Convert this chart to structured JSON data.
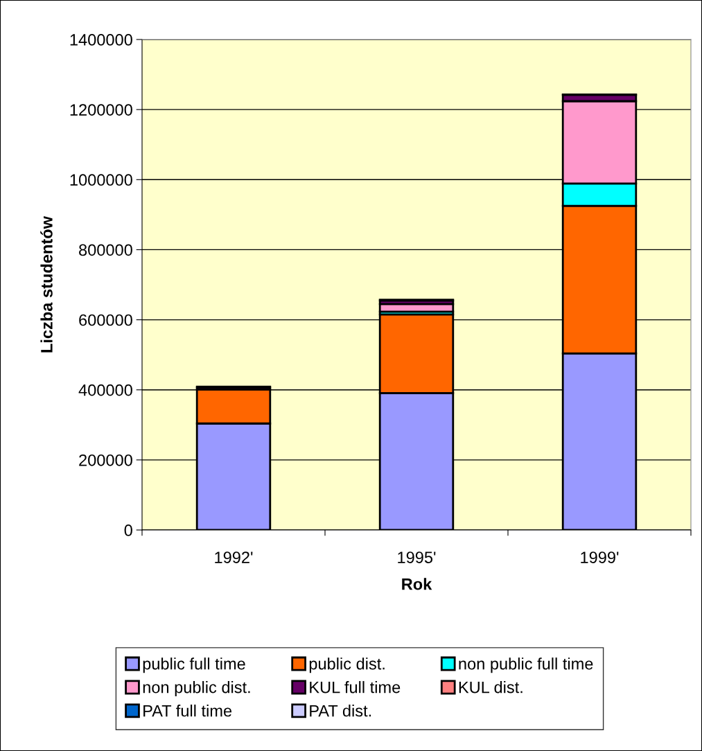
{
  "chart_data": {
    "type": "bar",
    "stacked": true,
    "xlabel": "Rok",
    "ylabel": "Liczba studentów",
    "categories": [
      "1992'",
      "1995'",
      "1999'"
    ],
    "series": [
      {
        "name": "public full time",
        "color": "#9999ff",
        "values": [
          304000,
          391000,
          504000
        ]
      },
      {
        "name": "public dist.",
        "color": "#ff6600",
        "values": [
          97000,
          224000,
          421000
        ]
      },
      {
        "name": "non public full time",
        "color": "#00ffff",
        "values": [
          null,
          8000,
          64000
        ]
      },
      {
        "name": "non public dist.",
        "color": "#ff99cc",
        "values": [
          null,
          22000,
          235000
        ]
      },
      {
        "name": "KUL full time",
        "color": "#660066",
        "values": [
          6000,
          10000,
          18000
        ]
      },
      {
        "name": "KUL dist.",
        "color": "#ff8080",
        "values": [
          null,
          null,
          null
        ]
      },
      {
        "name": "PAT full time",
        "color": "#0066cc",
        "values": [
          2000,
          2000,
          null
        ]
      },
      {
        "name": "PAT dist.",
        "color": "#ccccff",
        "values": [
          null,
          null,
          1000
        ]
      }
    ],
    "ylim": [
      0,
      1400000
    ],
    "yticks": [
      0,
      200000,
      400000,
      600000,
      800000,
      1000000,
      1200000,
      1400000
    ],
    "grid": "y",
    "legend": "bottom"
  }
}
